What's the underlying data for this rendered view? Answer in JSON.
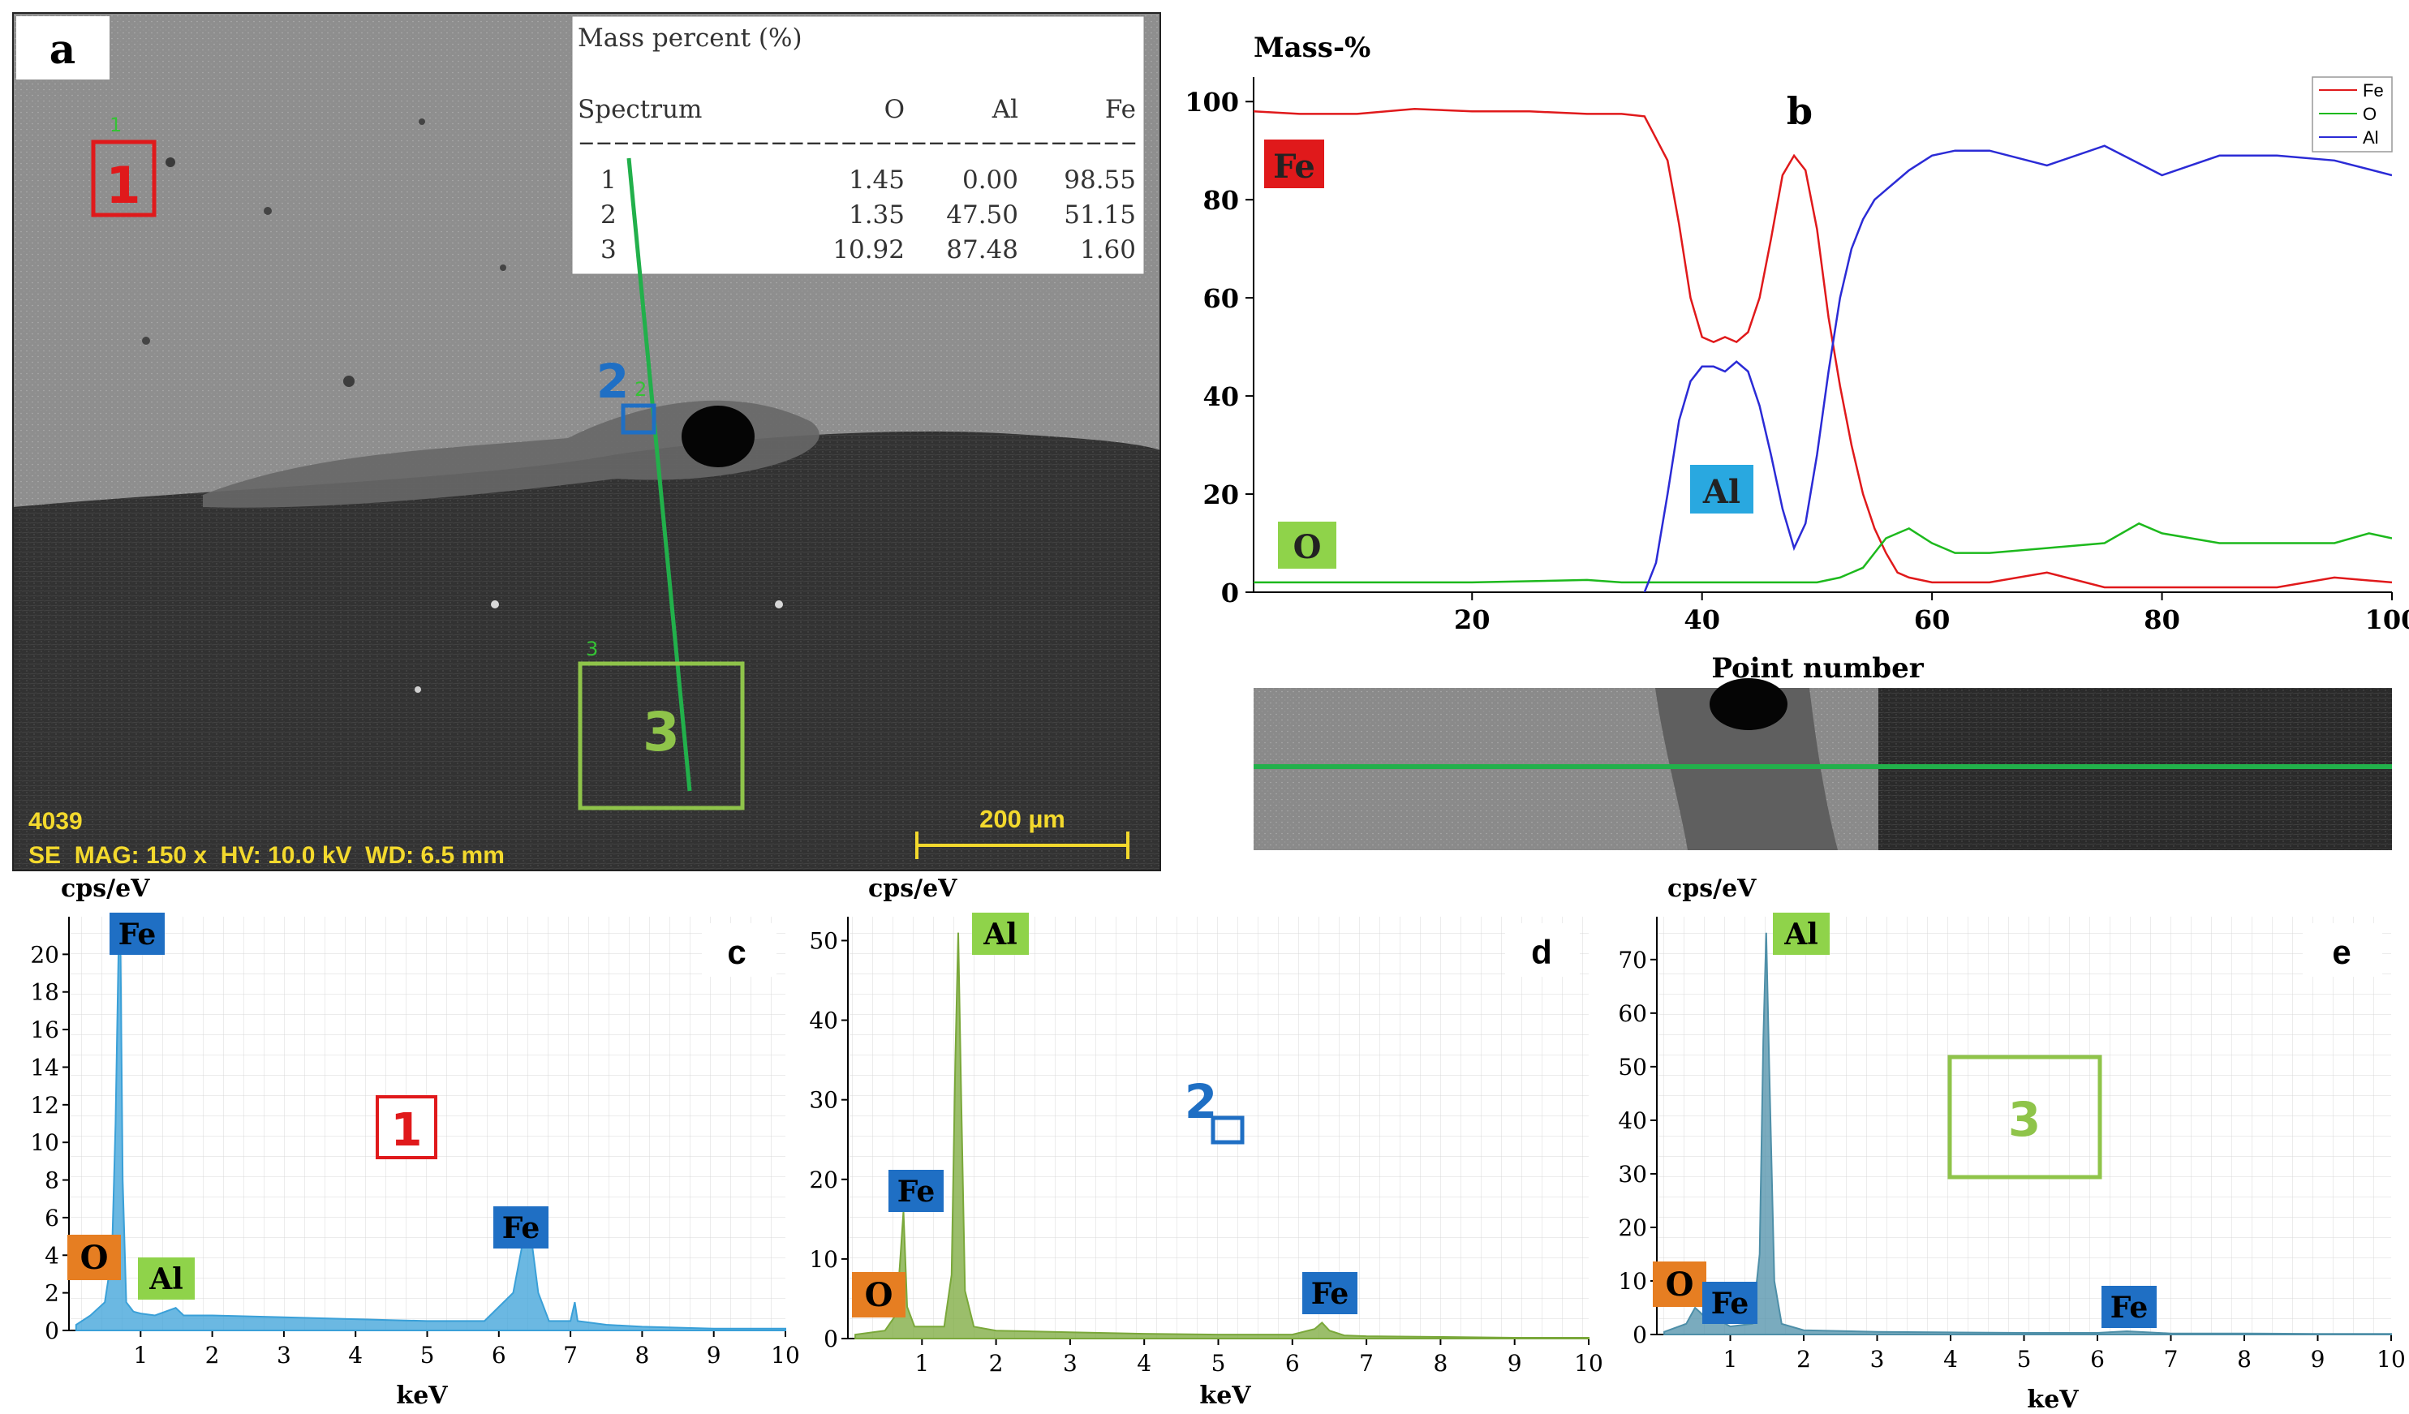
{
  "panel_a": {
    "label": "a",
    "table": {
      "title": "Mass percent (%)",
      "columns": [
        "Spectrum",
        "O",
        "Al",
        "Fe"
      ],
      "divider": "--------------------------------",
      "rows": [
        [
          "1",
          "1.45",
          "0.00",
          "98.55"
        ],
        [
          "2",
          "1.35",
          "47.50",
          "51.15"
        ],
        [
          "3",
          "10.92",
          "87.48",
          "1.60"
        ]
      ]
    },
    "region_labels": [
      "1",
      "2",
      "3"
    ],
    "region_small_labels": [
      "1",
      "2",
      "3"
    ],
    "info_id": "4039",
    "info_line": "SE  MAG: 150 x  HV: 10.0 kV  WD: 6.5 mm",
    "scale_bar": "200 µm"
  },
  "panel_b": {
    "label": "b",
    "element_tags": [
      "Fe",
      "Al",
      "O"
    ],
    "colors": {
      "Fe": "#e0191b",
      "O": "#1db91d",
      "Al": "#2b2bd6"
    }
  },
  "panel_c": {
    "label": "c",
    "region_label": "1",
    "tags": [
      "Fe",
      "Fe",
      "O",
      "Al"
    ]
  },
  "panel_d": {
    "label": "d",
    "region_label": "2",
    "tags": [
      "Al",
      "Fe",
      "O",
      "Fe"
    ]
  },
  "panel_e": {
    "label": "e",
    "region_label": "3",
    "tags": [
      "Al",
      "O",
      "Fe",
      "Fe"
    ]
  },
  "chart_data": [
    {
      "type": "line",
      "id": "b",
      "title": "",
      "ylabel": "Mass-%",
      "xlabel": "Point number",
      "xlim": [
        1,
        100
      ],
      "ylim": [
        0,
        105
      ],
      "xticks": [
        20,
        40,
        60,
        80,
        100
      ],
      "yticks": [
        0,
        20,
        40,
        60,
        80,
        100
      ],
      "legend": [
        "Fe",
        "O",
        "Al"
      ],
      "legend_position": "top-right",
      "series": [
        {
          "name": "Fe",
          "x": [
            1,
            5,
            10,
            15,
            20,
            25,
            30,
            33,
            35,
            37,
            38,
            39,
            40,
            41,
            42,
            43,
            44,
            45,
            46,
            47,
            48,
            49,
            50,
            51,
            52,
            53,
            54,
            55,
            56,
            57,
            58,
            60,
            65,
            70,
            75,
            80,
            85,
            90,
            95,
            100
          ],
          "y": [
            98,
            97.5,
            97.5,
            98.5,
            98,
            98,
            97.5,
            97.5,
            97,
            88,
            75,
            60,
            52,
            51,
            52,
            51,
            53,
            60,
            72,
            85,
            89,
            86,
            74,
            56,
            42,
            30,
            20,
            13,
            8,
            4,
            3,
            2,
            2,
            4,
            1,
            1,
            1,
            1,
            3,
            2
          ]
        },
        {
          "name": "O",
          "x": [
            1,
            5,
            10,
            20,
            30,
            33,
            35,
            40,
            45,
            50,
            52,
            54,
            55,
            56,
            57,
            58,
            60,
            62,
            65,
            70,
            75,
            78,
            80,
            85,
            90,
            95,
            98,
            100
          ],
          "y": [
            2,
            2,
            2,
            2,
            2.5,
            2,
            2,
            2,
            2,
            2,
            3,
            5,
            8,
            11,
            12,
            13,
            10,
            8,
            8,
            9,
            10,
            14,
            12,
            10,
            10,
            10,
            12,
            11
          ]
        },
        {
          "name": "Al",
          "x": [
            35,
            36,
            37,
            38,
            39,
            40,
            41,
            42,
            43,
            44,
            45,
            46,
            47,
            48,
            49,
            50,
            51,
            52,
            53,
            54,
            55,
            56,
            57,
            58,
            60,
            62,
            65,
            70,
            75,
            80,
            85,
            90,
            95,
            100
          ],
          "y": [
            0,
            6,
            20,
            35,
            43,
            46,
            46,
            45,
            47,
            45,
            38,
            28,
            17,
            9,
            14,
            28,
            45,
            60,
            70,
            76,
            80,
            82,
            84,
            86,
            89,
            90,
            90,
            87,
            91,
            85,
            89,
            89,
            88,
            85
          ]
        }
      ]
    },
    {
      "type": "area",
      "id": "c",
      "ylabel": "cps/eV",
      "xlabel": "keV",
      "xlim": [
        0,
        10
      ],
      "ylim": [
        0,
        22
      ],
      "xticks": [
        1,
        2,
        3,
        4,
        5,
        6,
        7,
        8,
        9,
        10
      ],
      "yticks": [
        0,
        2,
        4,
        6,
        8,
        10,
        12,
        14,
        16,
        18,
        20
      ],
      "series": [
        {
          "name": "Spectrum 1",
          "x": [
            0.1,
            0.3,
            0.5,
            0.6,
            0.65,
            0.7,
            0.72,
            0.75,
            0.8,
            0.9,
            1.0,
            1.2,
            1.49,
            1.6,
            2.0,
            3.0,
            4.0,
            5.0,
            5.8,
            6.2,
            6.35,
            6.4,
            6.45,
            6.55,
            6.7,
            7.0,
            7.06,
            7.1,
            7.5,
            8,
            9,
            10
          ],
          "y": [
            0.3,
            0.8,
            1.5,
            4,
            11,
            22,
            20,
            8,
            1.5,
            1,
            0.9,
            0.8,
            1.2,
            0.8,
            0.8,
            0.7,
            0.6,
            0.5,
            0.5,
            2,
            5,
            6.3,
            5,
            2,
            0.5,
            0.5,
            1.5,
            0.5,
            0.3,
            0.2,
            0.1,
            0.1
          ]
        }
      ]
    },
    {
      "type": "area",
      "id": "d",
      "ylabel": "cps/eV",
      "xlabel": "keV",
      "xlim": [
        0,
        10
      ],
      "ylim": [
        0,
        53
      ],
      "xticks": [
        1,
        2,
        3,
        4,
        5,
        6,
        7,
        8,
        9,
        10
      ],
      "yticks": [
        0,
        10,
        20,
        30,
        40,
        50
      ],
      "series": [
        {
          "name": "Spectrum 2",
          "x": [
            0.1,
            0.5,
            0.65,
            0.7,
            0.75,
            0.8,
            0.9,
            1.3,
            1.4,
            1.45,
            1.49,
            1.53,
            1.58,
            1.7,
            2,
            3,
            4,
            5,
            6,
            6.3,
            6.4,
            6.5,
            6.7,
            7,
            8,
            9,
            10
          ],
          "y": [
            0.5,
            1,
            3,
            9,
            16,
            4,
            1.5,
            1.5,
            8,
            35,
            51,
            30,
            6,
            1.5,
            1,
            0.8,
            0.6,
            0.5,
            0.5,
            1.2,
            2,
            1,
            0.4,
            0.3,
            0.2,
            0.1,
            0.1
          ]
        }
      ]
    },
    {
      "type": "area",
      "id": "e",
      "ylabel": "cps/eV",
      "xlabel": "keV",
      "xlim": [
        0,
        10
      ],
      "ylim": [
        0,
        78
      ],
      "xticks": [
        1,
        2,
        3,
        4,
        5,
        6,
        7,
        8,
        9,
        10
      ],
      "yticks": [
        0,
        10,
        20,
        30,
        40,
        50,
        60,
        70
      ],
      "series": [
        {
          "name": "Spectrum 3",
          "x": [
            0.1,
            0.4,
            0.52,
            0.6,
            0.7,
            0.8,
            1.0,
            1.3,
            1.4,
            1.45,
            1.49,
            1.53,
            1.6,
            1.7,
            2,
            3,
            4,
            5,
            6,
            6.4,
            7,
            8,
            9,
            10
          ],
          "y": [
            0.5,
            2,
            5,
            4,
            2.5,
            3,
            1.5,
            2,
            15,
            55,
            75,
            50,
            10,
            2,
            0.8,
            0.5,
            0.4,
            0.3,
            0.3,
            0.6,
            0.2,
            0.2,
            0.1,
            0.1
          ]
        }
      ]
    }
  ]
}
